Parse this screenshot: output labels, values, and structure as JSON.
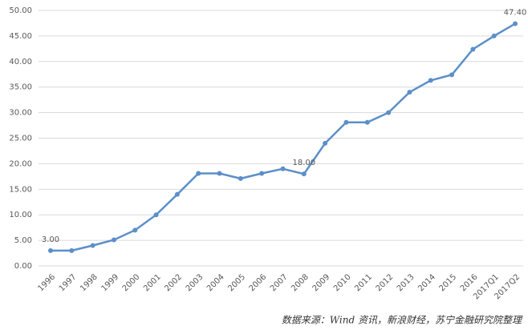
{
  "chart_data": {
    "type": "line",
    "categories": [
      "1996",
      "1997",
      "1998",
      "1999",
      "2000",
      "2001",
      "2002",
      "2003",
      "2004",
      "2005",
      "2006",
      "2007",
      "2008",
      "2009",
      "2010",
      "2011",
      "2012",
      "2013",
      "2014",
      "2015",
      "2016",
      "2017Q1",
      "2017Q2"
    ],
    "series": [
      {
        "color": "#5b8fc9",
        "values": [
          3.0,
          3.0,
          4.0,
          5.1,
          7.0,
          10.0,
          14.0,
          18.1,
          18.1,
          17.1,
          18.1,
          19.0,
          18.0,
          24.0,
          28.1,
          28.1,
          30.0,
          34.0,
          36.3,
          37.4,
          42.4,
          45.0,
          47.4
        ],
        "value_labels": [
          "3.00",
          null,
          null,
          null,
          null,
          null,
          null,
          null,
          null,
          null,
          null,
          null,
          "18.00",
          null,
          null,
          null,
          null,
          null,
          null,
          null,
          null,
          null,
          "47.40"
        ]
      }
    ],
    "ylim": [
      0,
      50
    ],
    "yticks": [
      {
        "value": 0,
        "label": "0.00"
      },
      {
        "value": 5,
        "label": "5.00"
      },
      {
        "value": 10,
        "label": "10.00"
      },
      {
        "value": 15,
        "label": "15.00"
      },
      {
        "value": 20,
        "label": "20.00"
      },
      {
        "value": 25,
        "label": "25.00"
      },
      {
        "value": 30,
        "label": "30.00"
      },
      {
        "value": 35,
        "label": "35.00"
      },
      {
        "value": 40,
        "label": "40.00"
      },
      {
        "value": 45,
        "label": "45.00"
      },
      {
        "value": 50,
        "label": "50.00"
      }
    ],
    "grid": true,
    "source": "数据来源：Wind 资讯，新浪财经，苏宁金融研究院整理"
  }
}
